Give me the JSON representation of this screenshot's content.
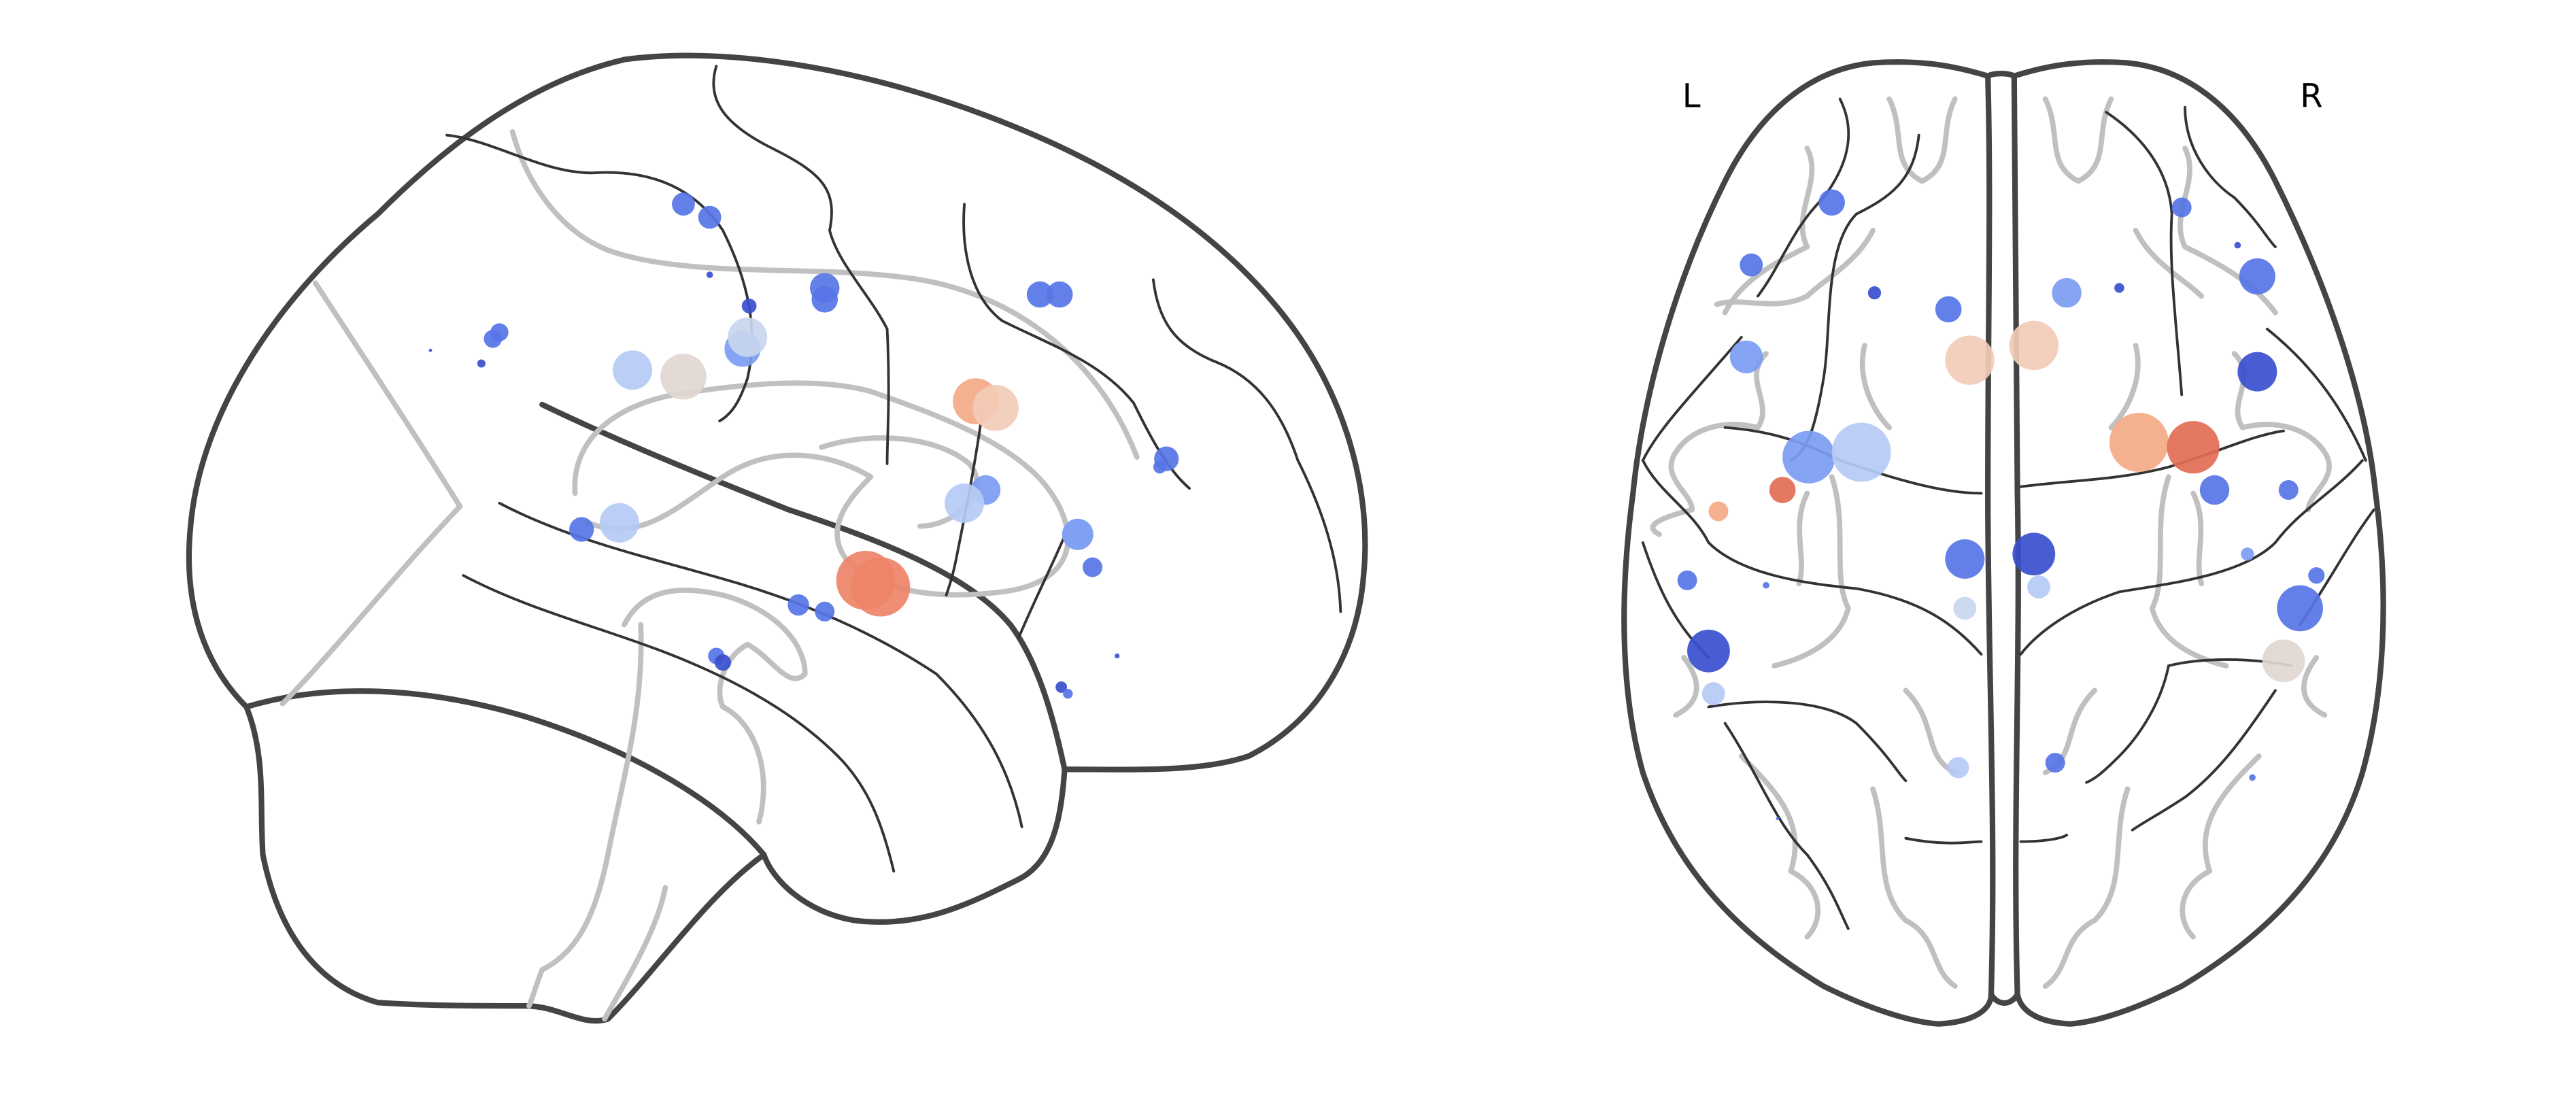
{
  "labels": {
    "left": "L",
    "right": "R"
  },
  "colors": {
    "outline": "#444444",
    "gyri": "#c0c0c0",
    "sulci": "#333333",
    "deep_blue": "#3a4fcf",
    "blue": "#5674e6",
    "mid_blue": "#7b9cf2",
    "light_blue": "#b5cbf5",
    "pale_blue": "#c8d6ee",
    "neutral": "#e1d7d2",
    "pale_orange": "#f2cbb7",
    "light_orange": "#f4a987",
    "orange": "#ee8468",
    "red": "#e36c55"
  },
  "nodes": [
    {
      "view": "sagittal",
      "color": "blue"
    },
    {
      "view": "sagittal",
      "color": "blue"
    },
    {
      "view": "sagittal",
      "color": "deep_blue"
    },
    {
      "view": "sagittal",
      "color": "deep_blue"
    },
    {
      "view": "sagittal",
      "color": "blue"
    },
    {
      "view": "sagittal",
      "color": "blue"
    },
    {
      "view": "sagittal",
      "color": "deep_blue"
    },
    {
      "view": "sagittal",
      "color": "deep_blue"
    },
    {
      "view": "sagittal",
      "color": "blue"
    },
    {
      "view": "sagittal",
      "color": "blue"
    },
    {
      "view": "sagittal",
      "color": "mid_blue"
    },
    {
      "view": "sagittal",
      "color": "light_blue"
    },
    {
      "view": "sagittal",
      "color": "pale_blue"
    },
    {
      "view": "sagittal",
      "color": "light_blue"
    },
    {
      "view": "sagittal",
      "color": "neutral"
    },
    {
      "view": "sagittal",
      "color": "blue"
    },
    {
      "view": "sagittal",
      "color": "blue"
    },
    {
      "view": "sagittal",
      "color": "blue"
    },
    {
      "view": "sagittal",
      "color": "blue"
    },
    {
      "view": "sagittal",
      "color": "light_orange"
    },
    {
      "view": "sagittal",
      "color": "pale_orange"
    },
    {
      "view": "sagittal",
      "color": "mid_blue"
    },
    {
      "view": "sagittal",
      "color": "light_blue"
    },
    {
      "view": "sagittal",
      "color": "blue"
    },
    {
      "view": "sagittal",
      "color": "light_blue"
    },
    {
      "view": "sagittal",
      "color": "mid_blue"
    },
    {
      "view": "sagittal",
      "color": "blue"
    },
    {
      "view": "sagittal",
      "color": "blue"
    },
    {
      "view": "sagittal",
      "color": "orange"
    },
    {
      "view": "sagittal",
      "color": "orange"
    },
    {
      "view": "sagittal",
      "color": "blue"
    },
    {
      "view": "sagittal",
      "color": "blue"
    },
    {
      "view": "sagittal",
      "color": "deep_blue"
    },
    {
      "view": "sagittal",
      "color": "deep_blue"
    },
    {
      "view": "sagittal",
      "color": "blue"
    },
    {
      "view": "sagittal",
      "color": "deep_blue"
    },
    {
      "view": "sagittal",
      "color": "blue"
    },
    {
      "view": "sagittal",
      "color": "blue"
    },
    {
      "view": "axial",
      "color": "blue"
    },
    {
      "view": "axial",
      "color": "deep_blue"
    },
    {
      "view": "axial",
      "color": "blue"
    },
    {
      "view": "axial",
      "color": "mid_blue"
    },
    {
      "view": "axial",
      "color": "blue"
    },
    {
      "view": "axial",
      "color": "deep_blue"
    },
    {
      "view": "axial",
      "color": "pale_orange"
    },
    {
      "view": "axial",
      "color": "pale_orange"
    },
    {
      "view": "axial",
      "color": "mid_blue"
    },
    {
      "view": "axial",
      "color": "deep_blue"
    },
    {
      "view": "axial",
      "color": "blue"
    },
    {
      "view": "axial",
      "color": "deep_blue"
    },
    {
      "view": "axial",
      "color": "mid_blue"
    },
    {
      "view": "axial",
      "color": "light_blue"
    },
    {
      "view": "axial",
      "color": "light_orange"
    },
    {
      "view": "axial",
      "color": "red"
    },
    {
      "view": "axial",
      "color": "red"
    },
    {
      "view": "axial",
      "color": "light_orange"
    },
    {
      "view": "axial",
      "color": "blue"
    },
    {
      "view": "axial",
      "color": "blue"
    },
    {
      "view": "axial",
      "color": "mid_blue"
    },
    {
      "view": "axial",
      "color": "blue"
    },
    {
      "view": "axial",
      "color": "blue"
    },
    {
      "view": "axial",
      "color": "blue"
    },
    {
      "view": "axial",
      "color": "deep_blue"
    },
    {
      "view": "axial",
      "color": "light_blue"
    },
    {
      "view": "axial",
      "color": "pale_blue"
    },
    {
      "view": "axial",
      "color": "blue"
    },
    {
      "view": "axial",
      "color": "blue"
    },
    {
      "view": "axial",
      "color": "blue"
    },
    {
      "view": "axial",
      "color": "deep_blue"
    },
    {
      "view": "axial",
      "color": "neutral"
    },
    {
      "view": "axial",
      "color": "light_blue"
    },
    {
      "view": "axial",
      "color": "light_blue"
    },
    {
      "view": "axial",
      "color": "blue"
    },
    {
      "view": "axial",
      "color": "blue"
    },
    {
      "view": "axial",
      "color": "blue"
    },
    {
      "view": "axial",
      "color": "deep_blue"
    },
    {
      "view": "axial",
      "color": "deep_blue"
    }
  ]
}
